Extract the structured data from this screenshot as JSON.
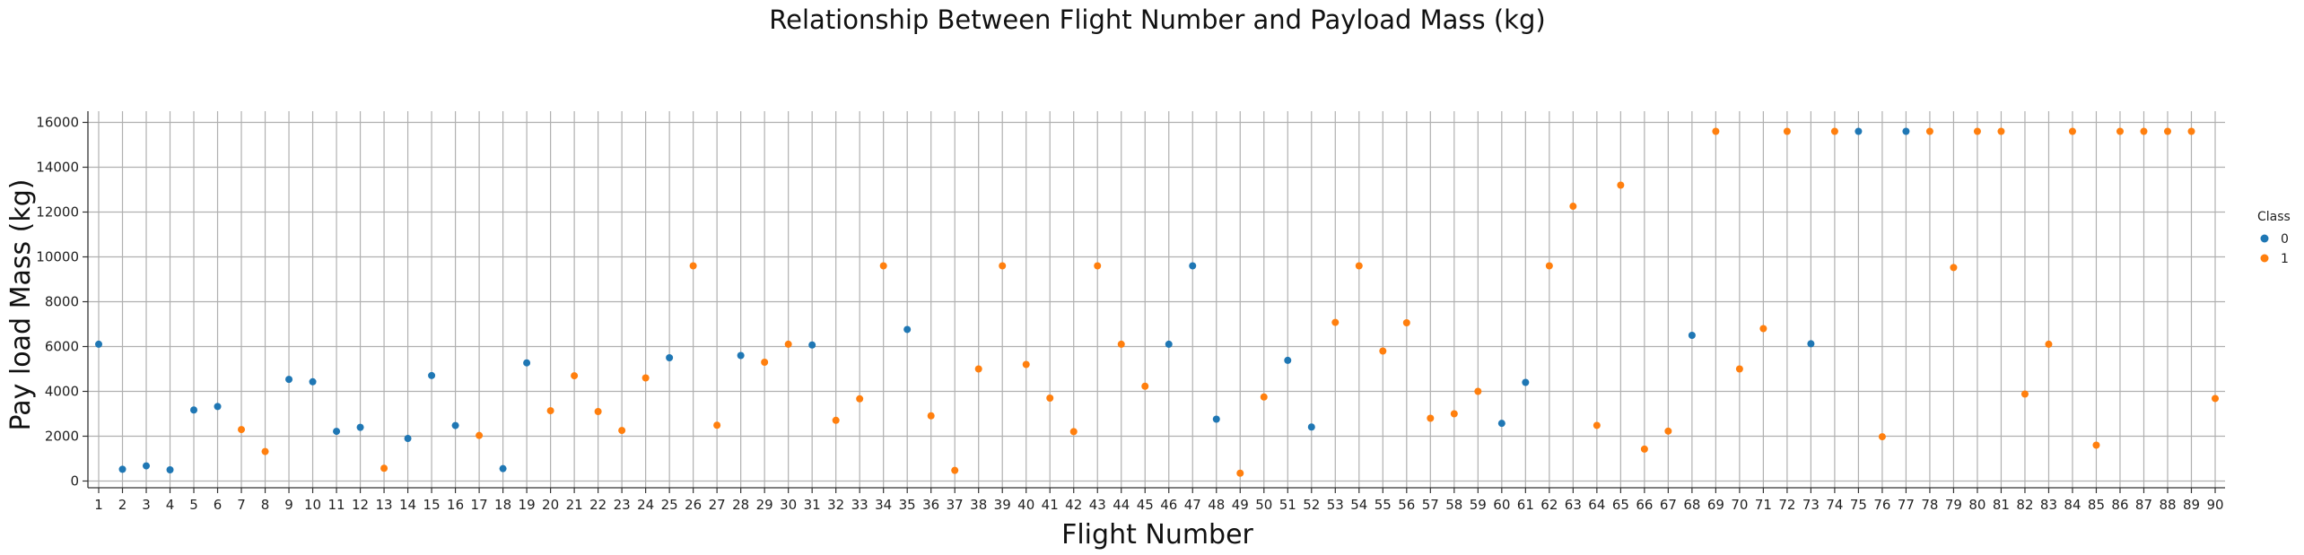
{
  "chart_data": {
    "type": "scatter",
    "title": "Relationship Between Flight Number and Payload Mass (kg)",
    "xlabel": "Flight Number",
    "ylabel": "Pay load Mass (kg)",
    "x_categories": [
      1,
      2,
      3,
      4,
      5,
      6,
      7,
      8,
      9,
      10,
      11,
      12,
      13,
      14,
      15,
      16,
      17,
      18,
      19,
      20,
      21,
      22,
      23,
      24,
      25,
      26,
      27,
      28,
      29,
      30,
      31,
      32,
      33,
      34,
      35,
      36,
      37,
      38,
      39,
      40,
      41,
      42,
      43,
      44,
      45,
      46,
      47,
      48,
      49,
      50,
      51,
      52,
      53,
      54,
      55,
      56,
      57,
      58,
      59,
      60,
      61,
      62,
      63,
      64,
      65,
      66,
      67,
      68,
      69,
      70,
      71,
      72,
      73,
      74,
      75,
      76,
      77,
      78,
      79,
      80,
      81,
      82,
      83,
      84,
      85,
      86,
      87,
      88,
      89,
      90
    ],
    "ylim": [
      -300,
      16500
    ],
    "yticks": [
      0,
      2000,
      4000,
      6000,
      8000,
      10000,
      12000,
      14000,
      16000
    ],
    "grid": true,
    "legend": {
      "title": "Class",
      "position": "right",
      "entries": [
        "0",
        "1"
      ]
    },
    "colors": {
      "0": "#1f77b4",
      "1": "#ff7f0e"
    },
    "points": [
      {
        "x": 1,
        "y": 6104,
        "class": 0
      },
      {
        "x": 2,
        "y": 525,
        "class": 0
      },
      {
        "x": 3,
        "y": 677,
        "class": 0
      },
      {
        "x": 4,
        "y": 500,
        "class": 0
      },
      {
        "x": 5,
        "y": 3170,
        "class": 0
      },
      {
        "x": 6,
        "y": 3325,
        "class": 0
      },
      {
        "x": 7,
        "y": 2296,
        "class": 1
      },
      {
        "x": 8,
        "y": 1316,
        "class": 1
      },
      {
        "x": 9,
        "y": 4535,
        "class": 0
      },
      {
        "x": 10,
        "y": 4428,
        "class": 0
      },
      {
        "x": 11,
        "y": 2216,
        "class": 0
      },
      {
        "x": 12,
        "y": 2395,
        "class": 0
      },
      {
        "x": 13,
        "y": 570,
        "class": 1
      },
      {
        "x": 14,
        "y": 1898,
        "class": 0
      },
      {
        "x": 15,
        "y": 4707,
        "class": 0
      },
      {
        "x": 16,
        "y": 2477,
        "class": 0
      },
      {
        "x": 17,
        "y": 2034,
        "class": 1
      },
      {
        "x": 18,
        "y": 553,
        "class": 0
      },
      {
        "x": 19,
        "y": 5271,
        "class": 0
      },
      {
        "x": 20,
        "y": 3136,
        "class": 1
      },
      {
        "x": 21,
        "y": 4696,
        "class": 1
      },
      {
        "x": 22,
        "y": 3100,
        "class": 1
      },
      {
        "x": 23,
        "y": 2257,
        "class": 1
      },
      {
        "x": 24,
        "y": 4600,
        "class": 1
      },
      {
        "x": 25,
        "y": 5500,
        "class": 0
      },
      {
        "x": 26,
        "y": 9600,
        "class": 1
      },
      {
        "x": 27,
        "y": 2490,
        "class": 1
      },
      {
        "x": 28,
        "y": 5600,
        "class": 0
      },
      {
        "x": 29,
        "y": 5300,
        "class": 1
      },
      {
        "x": 30,
        "y": 6104,
        "class": 1
      },
      {
        "x": 31,
        "y": 6070,
        "class": 0
      },
      {
        "x": 32,
        "y": 2708,
        "class": 1
      },
      {
        "x": 33,
        "y": 3669,
        "class": 1
      },
      {
        "x": 34,
        "y": 9600,
        "class": 1
      },
      {
        "x": 35,
        "y": 6761,
        "class": 0
      },
      {
        "x": 36,
        "y": 2910,
        "class": 1
      },
      {
        "x": 37,
        "y": 475,
        "class": 1
      },
      {
        "x": 38,
        "y": 5000,
        "class": 1
      },
      {
        "x": 39,
        "y": 9600,
        "class": 1
      },
      {
        "x": 40,
        "y": 5200,
        "class": 1
      },
      {
        "x": 41,
        "y": 3700,
        "class": 1
      },
      {
        "x": 42,
        "y": 2205,
        "class": 1
      },
      {
        "x": 43,
        "y": 9600,
        "class": 1
      },
      {
        "x": 44,
        "y": 6104,
        "class": 1
      },
      {
        "x": 45,
        "y": 4230,
        "class": 1
      },
      {
        "x": 46,
        "y": 6104,
        "class": 0
      },
      {
        "x": 47,
        "y": 9600,
        "class": 0
      },
      {
        "x": 48,
        "y": 2760,
        "class": 0
      },
      {
        "x": 49,
        "y": 350,
        "class": 1
      },
      {
        "x": 50,
        "y": 3750,
        "class": 1
      },
      {
        "x": 51,
        "y": 5383,
        "class": 0
      },
      {
        "x": 52,
        "y": 2410,
        "class": 0
      },
      {
        "x": 53,
        "y": 7076,
        "class": 1
      },
      {
        "x": 54,
        "y": 9600,
        "class": 1
      },
      {
        "x": 55,
        "y": 5800,
        "class": 1
      },
      {
        "x": 56,
        "y": 7060,
        "class": 1
      },
      {
        "x": 57,
        "y": 2800,
        "class": 1
      },
      {
        "x": 58,
        "y": 3000,
        "class": 1
      },
      {
        "x": 59,
        "y": 4000,
        "class": 1
      },
      {
        "x": 60,
        "y": 2573,
        "class": 0
      },
      {
        "x": 61,
        "y": 4400,
        "class": 0
      },
      {
        "x": 62,
        "y": 9600,
        "class": 1
      },
      {
        "x": 63,
        "y": 12259,
        "class": 1
      },
      {
        "x": 64,
        "y": 2482,
        "class": 1
      },
      {
        "x": 65,
        "y": 13200,
        "class": 1
      },
      {
        "x": 66,
        "y": 1425,
        "class": 1
      },
      {
        "x": 67,
        "y": 2227,
        "class": 1
      },
      {
        "x": 68,
        "y": 6500,
        "class": 0
      },
      {
        "x": 69,
        "y": 15600,
        "class": 1
      },
      {
        "x": 70,
        "y": 5000,
        "class": 1
      },
      {
        "x": 71,
        "y": 6800,
        "class": 1
      },
      {
        "x": 72,
        "y": 15600,
        "class": 1
      },
      {
        "x": 73,
        "y": 6123,
        "class": 0
      },
      {
        "x": 74,
        "y": 15600,
        "class": 1
      },
      {
        "x": 75,
        "y": 15600,
        "class": 0
      },
      {
        "x": 76,
        "y": 1977,
        "class": 1
      },
      {
        "x": 77,
        "y": 15600,
        "class": 0
      },
      {
        "x": 78,
        "y": 15600,
        "class": 1
      },
      {
        "x": 79,
        "y": 9525,
        "class": 1
      },
      {
        "x": 80,
        "y": 15600,
        "class": 1
      },
      {
        "x": 81,
        "y": 15600,
        "class": 1
      },
      {
        "x": 82,
        "y": 3880,
        "class": 1
      },
      {
        "x": 83,
        "y": 6104,
        "class": 1
      },
      {
        "x": 84,
        "y": 15600,
        "class": 1
      },
      {
        "x": 85,
        "y": 1600,
        "class": 1
      },
      {
        "x": 86,
        "y": 15600,
        "class": 1
      },
      {
        "x": 87,
        "y": 15600,
        "class": 1
      },
      {
        "x": 88,
        "y": 15600,
        "class": 1
      },
      {
        "x": 89,
        "y": 15600,
        "class": 1
      },
      {
        "x": 90,
        "y": 3681,
        "class": 1
      }
    ]
  }
}
